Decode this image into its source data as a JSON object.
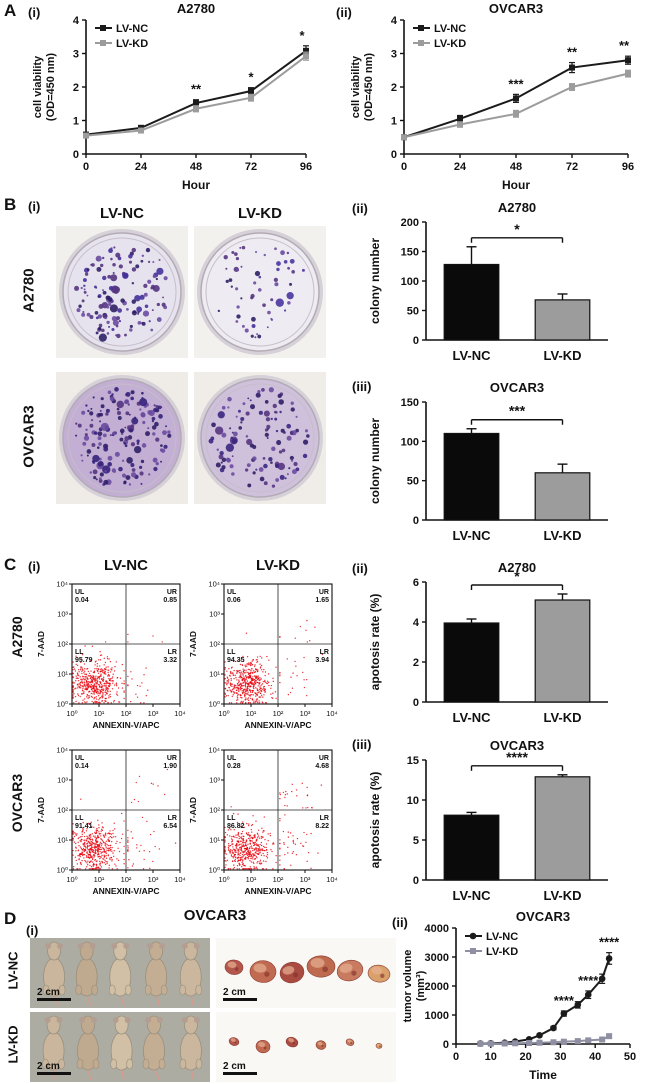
{
  "panel_labels": {
    "A": "A",
    "B": "B",
    "C": "C",
    "D": "D",
    "i": "(i)",
    "ii": "(ii)",
    "iii": "(iii)"
  },
  "chart_data": [
    {
      "id": "viability_a2780",
      "type": "line",
      "title": "A2780",
      "xlabel": "Hour",
      "ylabel": [
        "cell viability",
        "(OD=450 nm)"
      ],
      "x": [
        0,
        24,
        48,
        72,
        96
      ],
      "xticks": [
        0,
        24,
        48,
        72,
        96
      ],
      "xlim": [
        0,
        96
      ],
      "ylim": [
        0,
        4
      ],
      "yticks": [
        0,
        1,
        2,
        3,
        4
      ],
      "series": [
        {
          "name": "LV-NC",
          "color": "#1b1b1b",
          "marker": "square",
          "values": [
            0.58,
            0.78,
            1.52,
            1.88,
            3.08
          ],
          "errors": [
            0.05,
            0.07,
            0.1,
            0.1,
            0.15
          ]
        },
        {
          "name": "LV-KD",
          "color": "#9c9c9c",
          "marker": "square",
          "values": [
            0.55,
            0.7,
            1.35,
            1.68,
            2.92
          ],
          "errors": [
            0.05,
            0.06,
            0.09,
            0.1,
            0.12
          ]
        }
      ],
      "annotations": [
        {
          "x": 48,
          "text": "**"
        },
        {
          "x": 72,
          "text": "*"
        },
        {
          "x": 96,
          "text": "*"
        }
      ],
      "legend_position": "top-left"
    },
    {
      "id": "viability_ovcar3",
      "type": "line",
      "title": "OVCAR3",
      "xlabel": "Hour",
      "ylabel": [
        "cell viability",
        "(OD=450 nm)"
      ],
      "x": [
        0,
        24,
        48,
        72,
        96
      ],
      "xticks": [
        0,
        24,
        48,
        72,
        96
      ],
      "xlim": [
        0,
        96
      ],
      "ylim": [
        0,
        4
      ],
      "yticks": [
        0,
        1,
        2,
        3,
        4
      ],
      "series": [
        {
          "name": "LV-NC",
          "color": "#1b1b1b",
          "marker": "square",
          "values": [
            0.5,
            1.05,
            1.66,
            2.58,
            2.8
          ],
          "errors": [
            0.04,
            0.1,
            0.12,
            0.15,
            0.12
          ]
        },
        {
          "name": "LV-KD",
          "color": "#9c9c9c",
          "marker": "square",
          "values": [
            0.5,
            0.88,
            1.2,
            2.0,
            2.4
          ],
          "errors": [
            0.04,
            0.08,
            0.1,
            0.1,
            0.1
          ]
        }
      ],
      "annotations": [
        {
          "x": 48,
          "text": "***"
        },
        {
          "x": 72,
          "text": "**"
        },
        {
          "x": 96,
          "text": "**"
        }
      ],
      "legend_position": "top-left"
    },
    {
      "id": "colony_a2780",
      "type": "bar",
      "title": "A2780",
      "ylabel": [
        "colony number"
      ],
      "categories": [
        "LV-NC",
        "LV-KD"
      ],
      "values": [
        128,
        68
      ],
      "errors": [
        30,
        10
      ],
      "colors": [
        "#0a0a0a",
        "#9c9c9c"
      ],
      "ylim": [
        0,
        200
      ],
      "yticks": [
        0,
        50,
        100,
        150,
        200
      ],
      "sig": "*"
    },
    {
      "id": "colony_ovcar3",
      "type": "bar",
      "title": "OVCAR3",
      "ylabel": [
        "colony number"
      ],
      "categories": [
        "LV-NC",
        "LV-KD"
      ],
      "values": [
        110,
        60
      ],
      "errors": [
        6,
        11
      ],
      "colors": [
        "#0a0a0a",
        "#9c9c9c"
      ],
      "ylim": [
        0,
        150
      ],
      "yticks": [
        0,
        50,
        100,
        150
      ],
      "sig": "***"
    },
    {
      "id": "apoptosis_a2780",
      "type": "bar",
      "title": "A2780",
      "ylabel": [
        "apotosis rate (%)"
      ],
      "categories": [
        "LV-NC",
        "LV-KD"
      ],
      "values": [
        3.95,
        5.1
      ],
      "errors": [
        0.2,
        0.3
      ],
      "colors": [
        "#0a0a0a",
        "#9c9c9c"
      ],
      "ylim": [
        0,
        6
      ],
      "yticks": [
        0,
        2,
        4,
        6
      ],
      "sig": "*"
    },
    {
      "id": "apoptosis_ovcar3",
      "type": "bar",
      "title": "OVCAR3",
      "ylabel": [
        "apotosis rate (%)"
      ],
      "categories": [
        "LV-NC",
        "LV-KD"
      ],
      "values": [
        8.1,
        12.9
      ],
      "errors": [
        0.35,
        0.25
      ],
      "colors": [
        "#0a0a0a",
        "#9c9c9c"
      ],
      "ylim": [
        0,
        15
      ],
      "yticks": [
        0,
        5,
        10,
        15
      ],
      "sig": "****"
    },
    {
      "id": "tumor_volume",
      "type": "line",
      "title": "OVCAR3",
      "xlabel": "Time",
      "ylabel": [
        "tumor volume",
        "(mm³)"
      ],
      "xlim": [
        0,
        50
      ],
      "xticks": [
        0,
        10,
        20,
        30,
        40,
        50
      ],
      "ylim": [
        0,
        4000
      ],
      "yticks": [
        0,
        1000,
        2000,
        3000,
        4000
      ],
      "series": [
        {
          "name": "LV-NC",
          "color": "#1b1b1b",
          "marker": "circle",
          "x": [
            7,
            10,
            14,
            17,
            21,
            24,
            28,
            31,
            35,
            38,
            42,
            44
          ],
          "values": [
            15,
            25,
            45,
            85,
            160,
            300,
            550,
            1050,
            1350,
            1700,
            2250,
            2950
          ],
          "errors": [
            5,
            8,
            12,
            20,
            30,
            45,
            60,
            90,
            110,
            130,
            160,
            200
          ]
        },
        {
          "name": "LV-KD",
          "color": "#8f8fa3",
          "marker": "square",
          "x": [
            7,
            10,
            14,
            17,
            21,
            24,
            28,
            31,
            35,
            38,
            42,
            44
          ],
          "values": [
            8,
            12,
            18,
            25,
            35,
            45,
            60,
            80,
            100,
            125,
            155,
            270
          ],
          "errors": [
            3,
            4,
            5,
            6,
            8,
            10,
            12,
            15,
            18,
            22,
            28,
            60
          ]
        }
      ],
      "annotations": [
        {
          "x": 31,
          "text": "****"
        },
        {
          "x": 38,
          "text": "****"
        },
        {
          "x": 44,
          "text": "****"
        }
      ],
      "legend_position": "top-left"
    }
  ],
  "colony_assay": {
    "columns": [
      "LV-NC",
      "LV-KD"
    ],
    "rows": [
      {
        "label": "A2780",
        "dishes": [
          {
            "group": "LV-NC",
            "colonies": 135,
            "dish_color": "#e7e3ee",
            "photo_bg": "#f2f0ec",
            "colony_color": "#46309a"
          },
          {
            "group": "LV-KD",
            "colonies": 60,
            "dish_color": "#eeecf2",
            "photo_bg": "#f3f1ed",
            "colony_color": "#4a35a0"
          }
        ]
      },
      {
        "label": "OVCAR3",
        "dishes": [
          {
            "group": "LV-NC",
            "colonies": 170,
            "dish_color": "#c3aed4",
            "photo_bg": "#efece7",
            "colony_color": "#35217a"
          },
          {
            "group": "LV-KD",
            "colonies": 115,
            "dish_color": "#cfc0dc",
            "photo_bg": "#f0ede8",
            "colony_color": "#3a2782"
          }
        ]
      }
    ]
  },
  "flow": {
    "columns": [
      "LV-NC",
      "LV-KD"
    ],
    "rows": [
      "A2780",
      "OVCAR3"
    ],
    "xlabel": "ANNEXIN-V/APC",
    "ylabel": "7-AAD",
    "ticks": [
      "10⁰",
      "10¹",
      "10²",
      "10³",
      "10⁴"
    ],
    "dot_color": "#e8000b",
    "plots": [
      {
        "cell": "A2780",
        "group": "LV-NC",
        "quadrants": {
          "UL": "0.04",
          "UR": "0.85",
          "LL": "95.79",
          "LR": "3.32"
        }
      },
      {
        "cell": "A2780",
        "group": "LV-KD",
        "quadrants": {
          "UL": "0.06",
          "UR": "1.65",
          "LL": "94.35",
          "LR": "3.94"
        }
      },
      {
        "cell": "OVCAR3",
        "group": "LV-NC",
        "quadrants": {
          "UL": "0.14",
          "UR": "1.90",
          "LL": "91.41",
          "LR": "6.54"
        }
      },
      {
        "cell": "OVCAR3",
        "group": "LV-KD",
        "quadrants": {
          "UL": "0.28",
          "UR": "4.68",
          "LL": "86.82",
          "LR": "8.22"
        }
      }
    ]
  },
  "xenograft": {
    "title": "OVCAR3",
    "scale_label": "2 cm",
    "rows": [
      {
        "label": "LV-NC",
        "mice_count": 5,
        "tumor_sizes": [
          9,
          13,
          12,
          14,
          13,
          11
        ]
      },
      {
        "label": "LV-KD",
        "mice_count": 5,
        "tumor_sizes": [
          5,
          7,
          6,
          5,
          4,
          3
        ]
      }
    ]
  }
}
